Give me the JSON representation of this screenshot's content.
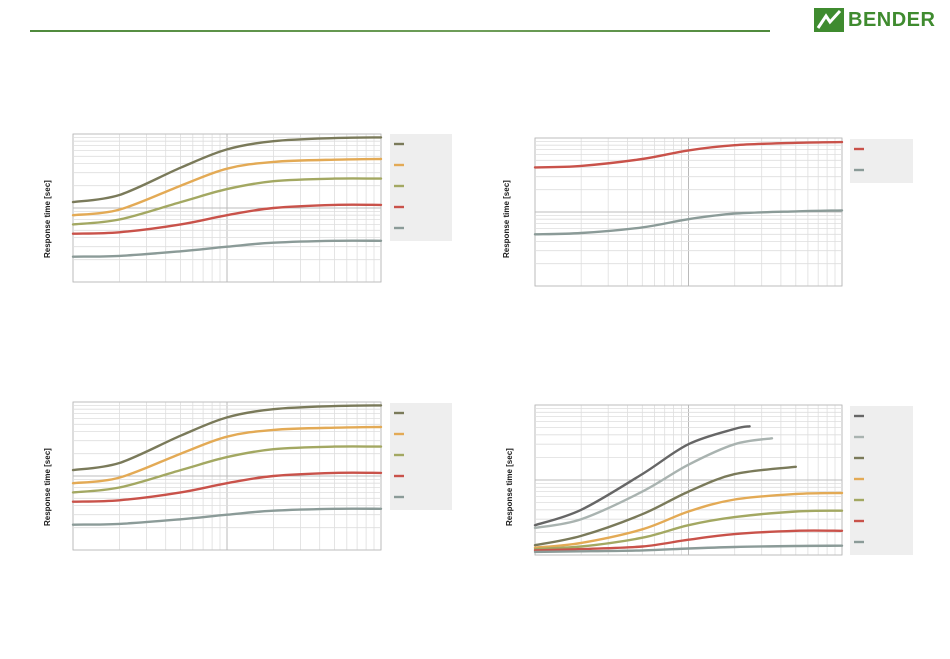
{
  "header": {
    "brand": "BENDER",
    "brand_color": "#3f8b2f",
    "rule_color": "#4f8a3c"
  },
  "chart_data": [
    {
      "type": "line",
      "title": "",
      "ylabel": "Response time [sec]",
      "xlabel": "",
      "x_scale": "log",
      "y_scale": "log",
      "grid": true,
      "legend": "right",
      "xlim": [
        1,
        100
      ],
      "ylim": [
        1,
        100
      ],
      "series": [
        {
          "color": "#7a7a5a",
          "x": [
            1,
            2,
            5,
            10,
            20,
            50,
            100
          ],
          "values": [
            12,
            15,
            35,
            62,
            80,
            88,
            90
          ]
        },
        {
          "color": "#e3aa55",
          "x": [
            1,
            2,
            5,
            10,
            20,
            50,
            100
          ],
          "values": [
            8,
            9.5,
            20,
            34,
            42,
            45,
            46
          ]
        },
        {
          "color": "#a3a862",
          "x": [
            1,
            2,
            5,
            10,
            20,
            50,
            100
          ],
          "values": [
            6,
            7,
            12,
            18,
            23,
            25,
            25
          ]
        },
        {
          "color": "#c9524a",
          "x": [
            1,
            2,
            5,
            10,
            20,
            50,
            100
          ],
          "values": [
            4.5,
            4.7,
            6,
            8,
            10,
            11,
            11
          ]
        },
        {
          "color": "#8b9b98",
          "x": [
            1,
            2,
            5,
            10,
            20,
            50,
            100
          ],
          "values": [
            2.2,
            2.25,
            2.6,
            3,
            3.4,
            3.6,
            3.6
          ]
        }
      ]
    },
    {
      "type": "line",
      "title": "",
      "ylabel": "Response time [sec]",
      "xlabel": "",
      "x_scale": "log",
      "y_scale": "log",
      "grid": true,
      "legend": "right",
      "xlim": [
        1,
        100
      ],
      "ylim": [
        1,
        100
      ],
      "series": [
        {
          "color": "#c9524a",
          "x": [
            1,
            2,
            5,
            10,
            20,
            50,
            100
          ],
          "values": [
            40,
            42,
            52,
            68,
            80,
            86,
            88
          ]
        },
        {
          "color": "#8b9b98",
          "x": [
            1,
            2,
            5,
            10,
            20,
            50,
            100
          ],
          "values": [
            5,
            5.2,
            6.2,
            8,
            9.5,
            10.2,
            10.5
          ]
        }
      ]
    },
    {
      "type": "line",
      "title": "",
      "ylabel": "Response time [sec]",
      "xlabel": "",
      "x_scale": "log",
      "y_scale": "log",
      "grid": true,
      "legend": "right",
      "xlim": [
        1,
        100
      ],
      "ylim": [
        1,
        100
      ],
      "series": [
        {
          "color": "#7a7a5a",
          "x": [
            1,
            2,
            5,
            10,
            20,
            50,
            100
          ],
          "values": [
            12,
            15,
            35,
            62,
            80,
            88,
            90
          ]
        },
        {
          "color": "#e3aa55",
          "x": [
            1,
            2,
            5,
            10,
            20,
            50,
            100
          ],
          "values": [
            8,
            9.5,
            20,
            34,
            42,
            45,
            46
          ]
        },
        {
          "color": "#a3a862",
          "x": [
            1,
            2,
            5,
            10,
            20,
            50,
            100
          ],
          "values": [
            6,
            7,
            12,
            18,
            23,
            25,
            25
          ]
        },
        {
          "color": "#c9524a",
          "x": [
            1,
            2,
            5,
            10,
            20,
            50,
            100
          ],
          "values": [
            4.5,
            4.7,
            6,
            8,
            10,
            11,
            11
          ]
        },
        {
          "color": "#8b9b98",
          "x": [
            1,
            2,
            5,
            10,
            20,
            50,
            100
          ],
          "values": [
            2.2,
            2.25,
            2.6,
            3,
            3.4,
            3.6,
            3.6
          ]
        }
      ]
    },
    {
      "type": "line",
      "title": "",
      "ylabel": "Response time [sec]",
      "xlabel": "",
      "x_scale": "log",
      "y_scale": "log",
      "grid": true,
      "legend": "right",
      "xlim": [
        1,
        100
      ],
      "ylim": [
        1,
        100
      ],
      "series": [
        {
          "color": "#666666",
          "x": [
            1,
            2,
            5,
            10,
            20,
            25
          ],
          "values": [
            2.5,
            4,
            12,
            30,
            48,
            52
          ]
        },
        {
          "color": "#a9b3b0",
          "x": [
            1,
            2,
            5,
            10,
            20,
            35
          ],
          "values": [
            2.3,
            3,
            7,
            16,
            30,
            36
          ]
        },
        {
          "color": "#7a7a5a",
          "x": [
            1,
            2,
            5,
            10,
            20,
            50
          ],
          "values": [
            1.35,
            1.8,
            3.5,
            7,
            12,
            15
          ]
        },
        {
          "color": "#e3aa55",
          "x": [
            1,
            2,
            5,
            10,
            20,
            50,
            100
          ],
          "values": [
            1.25,
            1.45,
            2.2,
            3.8,
            5.5,
            6.5,
            6.7
          ]
        },
        {
          "color": "#a3a862",
          "x": [
            1,
            2,
            5,
            10,
            20,
            50,
            100
          ],
          "values": [
            1.2,
            1.3,
            1.7,
            2.5,
            3.2,
            3.8,
            3.9
          ]
        },
        {
          "color": "#c9524a",
          "x": [
            1,
            2,
            5,
            10,
            20,
            50,
            100
          ],
          "values": [
            1.15,
            1.2,
            1.3,
            1.6,
            1.9,
            2.1,
            2.1
          ]
        },
        {
          "color": "#8b9b98",
          "x": [
            1,
            2,
            5,
            10,
            20,
            50,
            100
          ],
          "values": [
            1.1,
            1.12,
            1.15,
            1.22,
            1.28,
            1.32,
            1.33
          ]
        }
      ]
    }
  ]
}
